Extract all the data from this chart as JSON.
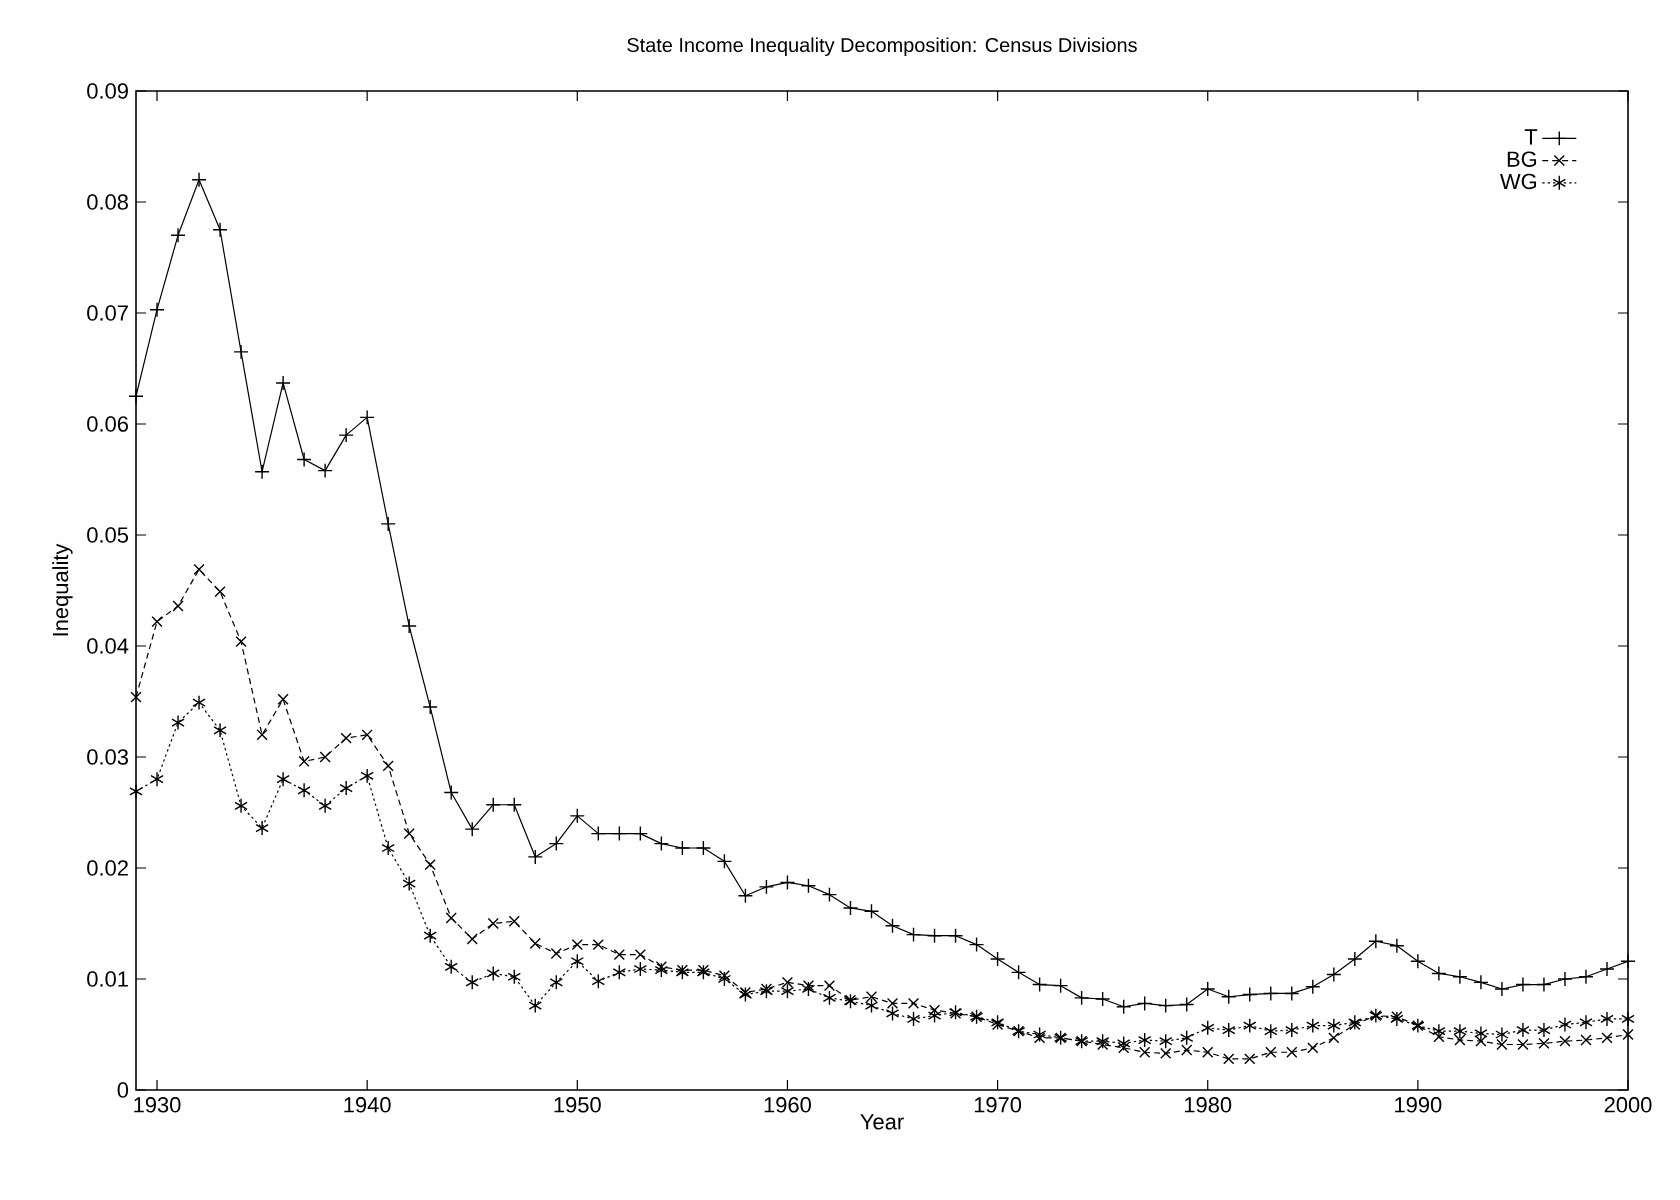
{
  "chart_data": {
    "type": "line",
    "title": "State Income Inequality Decomposition: Census Divisions",
    "xlabel": "Year",
    "ylabel": "Inequality",
    "x": [
      1929,
      1930,
      1931,
      1932,
      1933,
      1934,
      1935,
      1936,
      1937,
      1938,
      1939,
      1940,
      1941,
      1942,
      1943,
      1944,
      1945,
      1946,
      1947,
      1948,
      1949,
      1950,
      1951,
      1952,
      1953,
      1954,
      1955,
      1956,
      1957,
      1958,
      1959,
      1960,
      1961,
      1962,
      1963,
      1964,
      1965,
      1966,
      1967,
      1968,
      1969,
      1970,
      1971,
      1972,
      1973,
      1974,
      1975,
      1976,
      1977,
      1978,
      1979,
      1980,
      1981,
      1982,
      1983,
      1984,
      1985,
      1986,
      1987,
      1988,
      1989,
      1990,
      1991,
      1992,
      1993,
      1994,
      1995,
      1996,
      1997,
      1998,
      1999,
      2000
    ],
    "series": [
      {
        "name": "T",
        "color": "#000000",
        "marker": "plus",
        "line_style": "solid",
        "values": [
          0.0625,
          0.0703,
          0.077,
          0.082,
          0.0775,
          0.0665,
          0.0557,
          0.0637,
          0.0568,
          0.0558,
          0.059,
          0.0606,
          0.051,
          0.0418,
          0.0345,
          0.0268,
          0.0235,
          0.0257,
          0.0257,
          0.021,
          0.0222,
          0.0247,
          0.0231,
          0.0231,
          0.0231,
          0.0222,
          0.0218,
          0.0218,
          0.0206,
          0.0175,
          0.0183,
          0.0187,
          0.0184,
          0.0176,
          0.0164,
          0.0161,
          0.0148,
          0.014,
          0.0139,
          0.0139,
          0.0131,
          0.0118,
          0.0106,
          0.0095,
          0.0094,
          0.0083,
          0.0082,
          0.0075,
          0.0078,
          0.0076,
          0.0077,
          0.0091,
          0.0084,
          0.0086,
          0.0087,
          0.0087,
          0.0093,
          0.0104,
          0.0118,
          0.0134,
          0.013,
          0.0116,
          0.0105,
          0.0102,
          0.0097,
          0.0091,
          0.0095,
          0.0095,
          0.01,
          0.0102,
          0.0109,
          0.0116
        ]
      },
      {
        "name": "BG",
        "color": "#000000",
        "marker": "cross",
        "line_style": "dashed",
        "values": [
          0.0354,
          0.0422,
          0.0436,
          0.0469,
          0.0449,
          0.0404,
          0.032,
          0.0352,
          0.0296,
          0.03,
          0.0317,
          0.032,
          0.0292,
          0.0231,
          0.0203,
          0.0155,
          0.0136,
          0.015,
          0.0152,
          0.0132,
          0.0123,
          0.0131,
          0.0131,
          0.0122,
          0.0122,
          0.0111,
          0.0108,
          0.0108,
          0.0103,
          0.0088,
          0.0091,
          0.0097,
          0.0094,
          0.0094,
          0.0081,
          0.0084,
          0.0078,
          0.0078,
          0.0072,
          0.0069,
          0.0066,
          0.0059,
          0.0053,
          0.0047,
          0.0047,
          0.0044,
          0.0041,
          0.0038,
          0.0034,
          0.0033,
          0.0036,
          0.0034,
          0.0028,
          0.0028,
          0.0034,
          0.0034,
          0.0038,
          0.0047,
          0.0059,
          0.0067,
          0.0066,
          0.0058,
          0.0048,
          0.0045,
          0.0044,
          0.0041,
          0.0041,
          0.0042,
          0.0044,
          0.0045,
          0.0047,
          0.005
        ]
      },
      {
        "name": "WG",
        "color": "#000000",
        "marker": "cross",
        "line_style": "dotted",
        "values": [
          0.0269,
          0.028,
          0.0331,
          0.0349,
          0.0324,
          0.0256,
          0.0236,
          0.028,
          0.027,
          0.0256,
          0.0272,
          0.0283,
          0.0218,
          0.0186,
          0.0139,
          0.0111,
          0.0097,
          0.0105,
          0.0102,
          0.0076,
          0.0097,
          0.0116,
          0.0098,
          0.0106,
          0.0109,
          0.0108,
          0.0106,
          0.0106,
          0.01,
          0.0086,
          0.0089,
          0.0089,
          0.0091,
          0.0083,
          0.008,
          0.0076,
          0.0069,
          0.0064,
          0.0067,
          0.007,
          0.0066,
          0.0061,
          0.0053,
          0.005,
          0.0047,
          0.0044,
          0.0044,
          0.0042,
          0.0045,
          0.0044,
          0.0047,
          0.0056,
          0.0054,
          0.0058,
          0.0053,
          0.0054,
          0.0058,
          0.0058,
          0.0061,
          0.0067,
          0.0064,
          0.0058,
          0.0053,
          0.0053,
          0.0051,
          0.005,
          0.0054,
          0.0054,
          0.0059,
          0.0061,
          0.0064,
          0.0064
        ]
      }
    ],
    "xlim": [
      1929,
      2000
    ],
    "ylim": [
      0,
      0.09
    ],
    "xticks": [
      1930,
      1940,
      1950,
      1960,
      1970,
      1980,
      1990,
      2000
    ],
    "yticks": [
      0,
      0.01,
      0.02,
      0.03,
      0.04,
      0.05,
      0.06,
      0.07,
      0.08,
      0.09
    ],
    "grid": false,
    "legend": "top right"
  }
}
